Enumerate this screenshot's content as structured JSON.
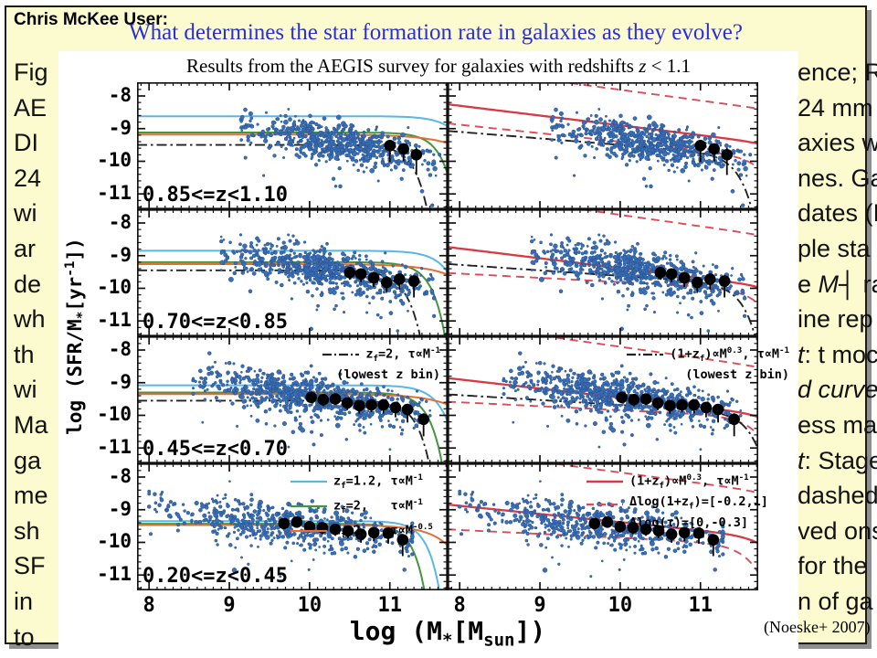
{
  "header": {
    "user_label": "Chris McKee User:",
    "question": "What determines the star formation rate in galaxies as they evolve?"
  },
  "caption_fragments": {
    "left": [
      "Fig",
      "AE",
      "DI",
      "24",
      "wi",
      "ar",
      "de",
      "wh",
      "th",
      "wi",
      "Ma",
      "ga",
      "me",
      "sh",
      "SF",
      "in",
      "to"
    ],
    "right": [
      "ence; R",
      "24 mm",
      "axies w",
      "nes. Ga",
      "dates (I",
      "ple sta",
      "e *M*┤ ra",
      "ine rep",
      "*t*: t moc",
      "*d curve*",
      "ess ma",
      "*t*: Stage",
      "dashed",
      "ved ons",
      "for the",
      "n of ga",
      ""
    ]
  },
  "chart_data": {
    "type": "scatter",
    "title": "Results from the AEGIS survey for galaxies with redshifts *z* < 1.1",
    "xlabel": "log (M_{*}[M_{sun}])",
    "ylabel": "log (SFR/M_{*}[yr^{-1}])",
    "citation": "(Noeske+ 2007)",
    "x_ticks": [
      8,
      9,
      10,
      11
    ],
    "y_ticks": [
      -8,
      -9,
      -10,
      -11
    ],
    "x_range": [
      7.85,
      11.72
    ],
    "y_range": [
      -11.47,
      -7.58
    ],
    "grid": false,
    "colors": {
      "scatter": "#3B6FB5",
      "scatter_edge": "#24508F",
      "cyan": "#59B7E8",
      "green": "#43953E",
      "orange": "#E07038",
      "red": "#D93845",
      "red_dashed": "#DE4B58",
      "dashdot": "#222222",
      "median": "#000000"
    },
    "rows": [
      {
        "bin_label": "0.85<=z<1.10",
        "cloud": {
          "n": 650,
          "x_min": 9.15,
          "x_max": 11.62,
          "x_peak": 10.35,
          "x_sd": 0.52,
          "y_at_10": -9.28,
          "slope": -0.42,
          "y_sd": 0.29,
          "seed": 101
        },
        "medians": [
          [
            11.0,
            -9.52,
            0.5
          ],
          [
            11.17,
            -9.62,
            0.38
          ],
          [
            11.33,
            -9.8,
            0.62
          ]
        ],
        "left_curves": [
          {
            "color": "cyan",
            "style": "solid",
            "plateau": -8.62,
            "xc": 11.95,
            "s": 2.2
          },
          {
            "color": "green",
            "style": "solid",
            "plateau": -9.12,
            "xc": 11.68,
            "s": 2.6
          },
          {
            "color": "orange",
            "style": "solid",
            "plateau": -9.18,
            "xc": 12.2,
            "s": 1.2
          },
          {
            "color": "dashdot",
            "style": "dashdot",
            "plateau": -9.5,
            "xc": 11.35,
            "s": 2.6
          }
        ],
        "right_curves": [
          {
            "color": "red",
            "style": "solid",
            "a": -8.3,
            "b": -0.3,
            "xc": 12.4,
            "s": 2.0
          },
          {
            "color": "red_dashed",
            "style": "dashed",
            "a": -7.15,
            "b": -0.33,
            "xc": 12.7,
            "s": 2.0
          },
          {
            "color": "red_dashed",
            "style": "dashed",
            "a": -8.88,
            "b": -0.26,
            "xc": 11.95,
            "s": 2.0
          },
          {
            "color": "dashdot",
            "style": "dashdot",
            "a": -9.1,
            "b": -0.2,
            "xc": 11.55,
            "s": 2.4
          }
        ]
      },
      {
        "bin_label": "0.70<=z<0.85",
        "cloud": {
          "n": 700,
          "x_min": 8.9,
          "x_max": 11.55,
          "x_peak": 10.2,
          "x_sd": 0.56,
          "y_at_10": -9.36,
          "slope": -0.4,
          "y_sd": 0.3,
          "seed": 202
        },
        "medians": [
          [
            10.5,
            -9.52,
            0.22
          ],
          [
            10.64,
            -9.56,
            0.25
          ],
          [
            10.8,
            -9.68,
            0.28
          ],
          [
            10.96,
            -9.82,
            0.32
          ],
          [
            11.12,
            -9.72,
            0.32
          ],
          [
            11.3,
            -9.78,
            0.5
          ]
        ],
        "left_curves": [
          {
            "color": "cyan",
            "style": "solid",
            "plateau": -8.85,
            "xc": 11.8,
            "s": 2.3
          },
          {
            "color": "green",
            "style": "solid",
            "plateau": -9.2,
            "xc": 11.55,
            "s": 2.6
          },
          {
            "color": "orange",
            "style": "solid",
            "plateau": -9.26,
            "xc": 12.1,
            "s": 1.3
          },
          {
            "color": "dashdot",
            "style": "dashdot",
            "plateau": -9.45,
            "xc": 11.25,
            "s": 2.4
          }
        ],
        "right_curves": [
          {
            "color": "red",
            "style": "solid",
            "a": -8.78,
            "b": -0.3,
            "xc": 12.3,
            "s": 2.0
          },
          {
            "color": "red_dashed",
            "style": "dashed",
            "a": -7.05,
            "b": -0.35,
            "xc": 12.55,
            "s": 2.0
          },
          {
            "color": "red_dashed",
            "style": "dashed",
            "a": -9.55,
            "b": -0.13,
            "xc": 11.9,
            "s": 2.0
          },
          {
            "color": "dashdot",
            "style": "dashdot",
            "a": -9.28,
            "b": -0.17,
            "xc": 11.6,
            "s": 2.4
          }
        ]
      },
      {
        "bin_label": "0.45<=z<0.70",
        "cloud": {
          "n": 750,
          "x_min": 8.55,
          "x_max": 11.5,
          "x_peak": 10.05,
          "x_sd": 0.62,
          "y_at_10": -9.42,
          "slope": -0.38,
          "y_sd": 0.31,
          "seed": 303
        },
        "medians": [
          [
            10.02,
            -9.45,
            0.16
          ],
          [
            10.17,
            -9.52,
            0.2
          ],
          [
            10.32,
            -9.5,
            0.18
          ],
          [
            10.47,
            -9.62,
            0.22
          ],
          [
            10.62,
            -9.7,
            0.25
          ],
          [
            10.77,
            -9.68,
            0.22
          ],
          [
            10.92,
            -9.68,
            0.26
          ],
          [
            11.07,
            -9.76,
            0.3
          ],
          [
            11.22,
            -9.82,
            0.4
          ],
          [
            11.42,
            -10.12,
            0.52
          ]
        ],
        "left_curves": [
          {
            "color": "cyan",
            "style": "solid",
            "plateau": -9.08,
            "xc": 11.7,
            "s": 2.4
          },
          {
            "color": "green",
            "style": "solid",
            "plateau": -9.3,
            "xc": 11.52,
            "s": 2.6
          },
          {
            "color": "orange",
            "style": "solid",
            "plateau": -9.35,
            "xc": 12.1,
            "s": 1.3
          },
          {
            "color": "dashdot",
            "style": "dashdot",
            "plateau": -9.55,
            "xc": 11.38,
            "s": 2.6
          }
        ],
        "right_curves": [
          {
            "color": "red",
            "style": "solid",
            "a": -8.9,
            "b": -0.28,
            "xc": 12.2,
            "s": 2.0
          },
          {
            "color": "red_dashed",
            "style": "dashed",
            "a": -7.2,
            "b": -0.35,
            "xc": 12.5,
            "s": 2.0
          },
          {
            "color": "red_dashed",
            "style": "dashed",
            "a": -9.6,
            "b": -0.12,
            "xc": 11.85,
            "s": 2.0
          },
          {
            "color": "dashdot",
            "style": "dashdot",
            "a": -9.38,
            "b": -0.15,
            "xc": 11.7,
            "s": 2.4
          }
        ]
      },
      {
        "bin_label": "0.20<=z<0.45",
        "cloud": {
          "n": 560,
          "x_min": 8.0,
          "x_max": 11.28,
          "x_peak": 9.65,
          "x_sd": 0.75,
          "y_at_10": -9.55,
          "slope": -0.3,
          "y_sd": 0.33,
          "seed": 404
        },
        "medians": [
          [
            9.68,
            -9.42,
            0.16
          ],
          [
            9.84,
            -9.38,
            0.16
          ],
          [
            10.0,
            -9.52,
            0.18
          ],
          [
            10.16,
            -9.55,
            0.2
          ],
          [
            10.32,
            -9.6,
            0.2
          ],
          [
            10.48,
            -9.65,
            0.22
          ],
          [
            10.64,
            -9.75,
            0.26
          ],
          [
            10.8,
            -9.7,
            0.26
          ],
          [
            10.98,
            -9.72,
            0.32
          ],
          [
            11.16,
            -9.92,
            0.5
          ]
        ],
        "left_curves": [
          {
            "color": "cyan",
            "style": "solid",
            "plateau": -9.35,
            "xc": 11.5,
            "s": 2.8
          },
          {
            "color": "green",
            "style": "solid",
            "plateau": -9.43,
            "xc": 11.32,
            "s": 2.8
          },
          {
            "color": "orange",
            "style": "solid",
            "plateau": -9.47,
            "xc": 11.85,
            "s": 1.6
          }
        ],
        "right_curves": [
          {
            "color": "red",
            "style": "solid",
            "a": -8.88,
            "b": -0.25,
            "xc": 12.05,
            "s": 2.0
          },
          {
            "color": "red_dashed",
            "style": "dashed",
            "a": -7.2,
            "b": -0.33,
            "xc": 12.35,
            "s": 2.0
          },
          {
            "color": "red_dashed",
            "style": "dashed",
            "a": -9.62,
            "b": -0.12,
            "xc": 11.75,
            "s": 2.0
          }
        ]
      }
    ],
    "legends": {
      "row3_left": {
        "lines": [
          {
            "sample": "dashdot",
            "text": "z_{f}=2, τ∝M^{-1}"
          },
          {
            "sample": null,
            "text": "(lowest z bin)"
          }
        ]
      },
      "row3_right": {
        "lines": [
          {
            "sample": "dashdot",
            "text": "(1+z_{f})∝M^{0.3}, τ∝M^{-1}"
          },
          {
            "sample": null,
            "text": "(lowest z bin)"
          }
        ]
      },
      "row4_left": {
        "lines": [
          {
            "sample": "cyan",
            "text": "z_{f}=1.2, τ∝M^{-1}"
          },
          {
            "sample": "green",
            "text": "z_{f}=2,   τ∝M^{-1}"
          },
          {
            "sample": "orange",
            "text": "z_{f}=2,   τ∝M^{-0.5}"
          }
        ]
      },
      "row4_right": {
        "lines": [
          {
            "sample": "red-solid",
            "text": "(1+z_{f})∝M^{0.3}, τ∝M^{-1}"
          },
          {
            "sample": "red-dashed",
            "text": "Δlog(1+z_{f})=[-0.2,1]"
          },
          {
            "sample": null,
            "text": "Δlog(τ)=[0,-0.3]"
          }
        ]
      }
    }
  }
}
